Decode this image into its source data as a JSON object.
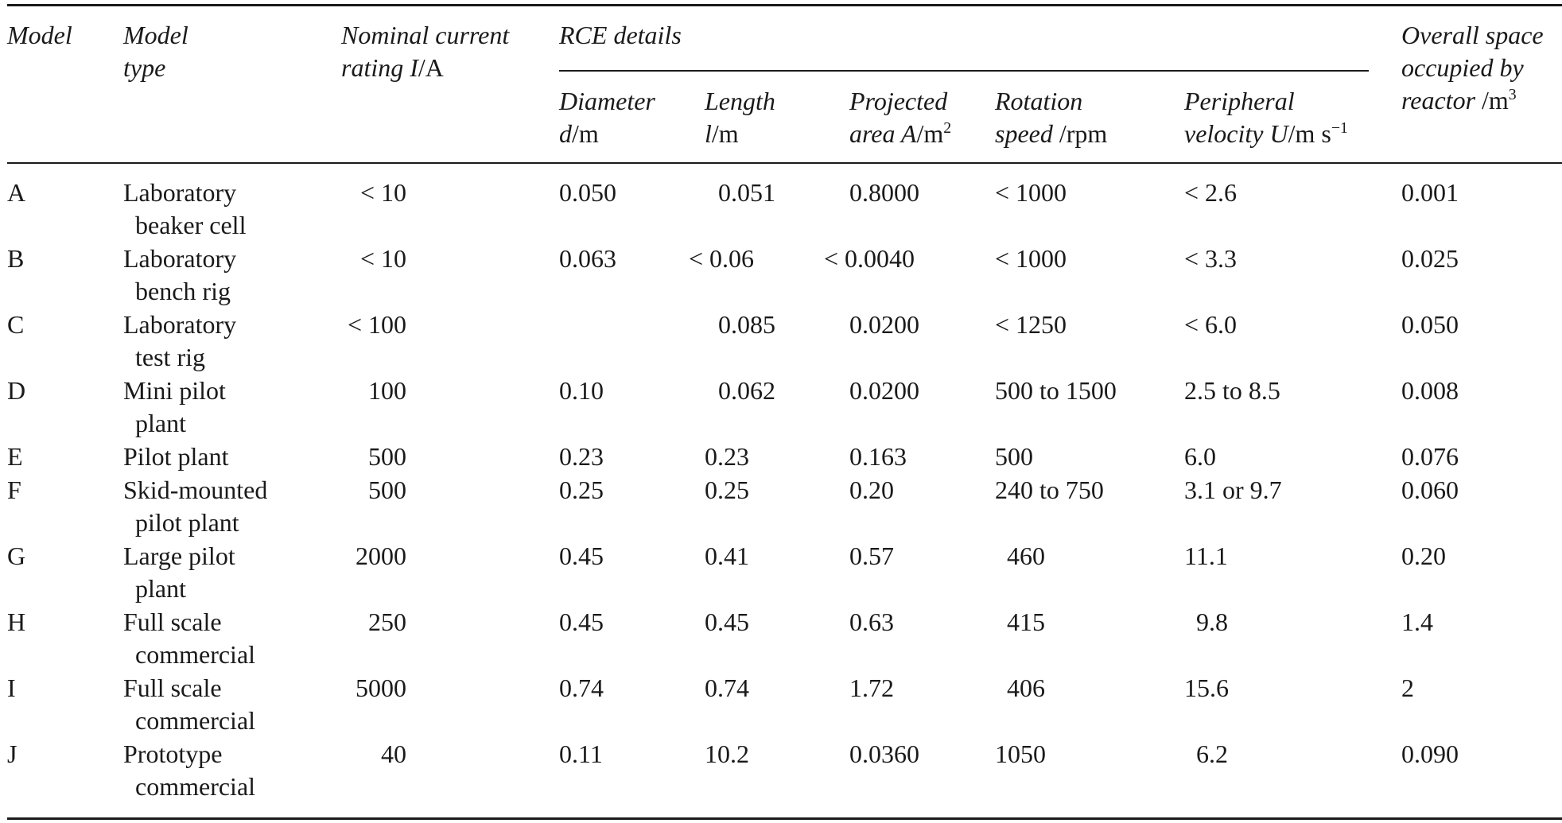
{
  "headers": {
    "model": "Model",
    "model_type_1": "Model",
    "model_type_2": "type",
    "nominal_1": "Nominal current",
    "nominal_2_it": "rating I",
    "nominal_2_up": "/A",
    "rce_details": "RCE details",
    "diameter_1": "Diameter",
    "diameter_2_it": "d",
    "diameter_2_up": "/m",
    "length_1": "Length",
    "length_2_it": "l",
    "length_2_up": "/m",
    "projected_1": "Projected",
    "projected_2_it": "area A",
    "projected_2_up": "/m",
    "projected_2_sup": "2",
    "rotation_1": "Rotation",
    "rotation_2_it": "speed",
    "rotation_2_up": " /rpm",
    "peripheral_1": "Peripheral",
    "peripheral_2_it": "velocity U",
    "peripheral_2_up": "/m s",
    "peripheral_2_sup": "−1",
    "overall_1": "Overall space",
    "overall_2": "occupied by",
    "overall_3_it": "reactor",
    "overall_3_up": " /m",
    "overall_3_sup": "3"
  },
  "rows": [
    {
      "model": "A",
      "type_1": "Laboratory",
      "type_2": "beaker cell",
      "current": "< 10",
      "diameter": "0.050",
      "length": "0.051",
      "area": "0.8000",
      "speed": "< 1000",
      "velocity": "< 2.6",
      "space": "0.001"
    },
    {
      "model": "B",
      "type_1": "Laboratory",
      "type_2": "bench rig",
      "current": "< 10",
      "diameter": "0.063",
      "length": "< 0.06",
      "area": "< 0.0040",
      "speed": "< 1000",
      "velocity": "< 3.3",
      "space": "0.025"
    },
    {
      "model": "C",
      "type_1": "Laboratory",
      "type_2": "test rig",
      "current": "< 100",
      "diameter": "",
      "length": "0.085",
      "area": "0.0200",
      "speed": "< 1250",
      "velocity": "< 6.0",
      "space": "0.050"
    },
    {
      "model": "D",
      "type_1": "Mini pilot",
      "type_2": "plant",
      "current": "100",
      "diameter": "0.10",
      "length": "0.062",
      "area": "0.0200",
      "speed": "500 to 1500",
      "velocity": "2.5 to 8.5",
      "space": "0.008"
    },
    {
      "model": "E",
      "type_1": "Pilot plant",
      "type_2": "",
      "current": "500",
      "diameter": "0.23",
      "length": "0.23",
      "area": "0.163",
      "speed": "500",
      "velocity": "6.0",
      "space": "0.076"
    },
    {
      "model": "F",
      "type_1": "Skid-mounted",
      "type_2": "pilot plant",
      "current": "500",
      "diameter": "0.25",
      "length": "0.25",
      "area": "0.20",
      "speed": "240 to 750",
      "velocity": "3.1 or 9.7",
      "space": "0.060"
    },
    {
      "model": "G",
      "type_1": "Large pilot",
      "type_2": "plant",
      "current": "2000",
      "diameter": "0.45",
      "length": "0.41",
      "area": "0.57",
      "speed": "460",
      "velocity": "11.1",
      "space": "0.20"
    },
    {
      "model": "H",
      "type_1": "Full scale",
      "type_2": "commercial",
      "current": "250",
      "diameter": "0.45",
      "length": "0.45",
      "area": "0.63",
      "speed": "415",
      "velocity": "9.8",
      "space": "1.4"
    },
    {
      "model": "I",
      "type_1": "Full scale",
      "type_2": "commercial",
      "current": "5000",
      "diameter": "0.74",
      "length": "0.74",
      "area": "1.72",
      "speed": "406",
      "velocity": "15.6",
      "space": "2"
    },
    {
      "model": "J",
      "type_1": "Prototype",
      "type_2": "commercial",
      "current": "40",
      "diameter": "0.11",
      "length": "10.2",
      "area": "0.0360",
      "speed": "1050",
      "velocity": "6.2",
      "space": "0.090"
    }
  ]
}
